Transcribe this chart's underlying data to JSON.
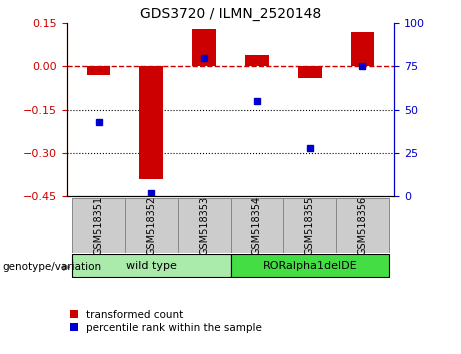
{
  "title": "GDS3720 / ILMN_2520148",
  "samples": [
    "GSM518351",
    "GSM518352",
    "GSM518353",
    "GSM518354",
    "GSM518355",
    "GSM518356"
  ],
  "red_values": [
    -0.03,
    -0.39,
    0.13,
    0.04,
    -0.04,
    0.12
  ],
  "blue_percentiles": [
    43,
    2,
    80,
    55,
    28,
    75
  ],
  "ylim_left": [
    -0.45,
    0.15
  ],
  "ylim_right": [
    0,
    100
  ],
  "yticks_left": [
    0.15,
    0.0,
    -0.15,
    -0.3,
    -0.45
  ],
  "yticks_right": [
    100,
    75,
    50,
    25,
    0
  ],
  "red_color": "#CC0000",
  "blue_color": "#0000CC",
  "dashed_color": "#CC0000",
  "dotted_color": "#000000",
  "groups": [
    {
      "label": "wild type",
      "samples": [
        0,
        1,
        2
      ],
      "color": "#AAEAAA"
    },
    {
      "label": "RORalpha1delDE",
      "samples": [
        3,
        4,
        5
      ],
      "color": "#44DD44"
    }
  ],
  "genotype_label": "genotype/variation",
  "legend_red": "transformed count",
  "legend_blue": "percentile rank within the sample",
  "bar_width": 0.45,
  "blue_marker_size": 5,
  "sample_cell_color": "#CCCCCC",
  "sample_cell_edge": "#888888"
}
